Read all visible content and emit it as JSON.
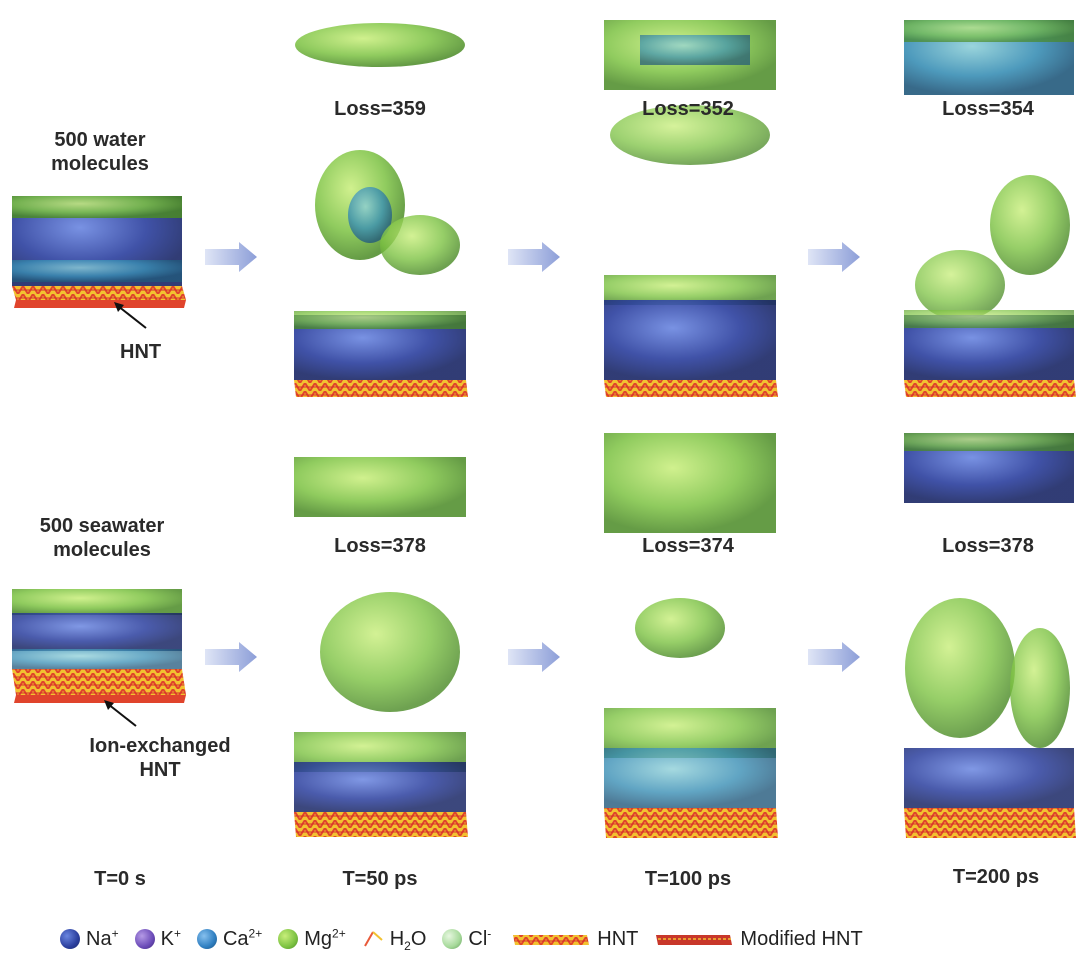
{
  "row1": {
    "initial_label": "500 water\nmolecules",
    "substrate_label": "HNT",
    "losses": [
      "Loss=359",
      "Loss=352",
      "Loss=354"
    ]
  },
  "row2": {
    "initial_label": "500 seawater\nmolecules",
    "substrate_label": "Ion-exchanged\nHNT",
    "losses": [
      "Loss=378",
      "Loss=374",
      "Loss=378"
    ]
  },
  "times": [
    "T=0 s",
    "T=50 ps",
    "T=100 ps",
    "T=200 ps"
  ],
  "legend": [
    {
      "base": "Na",
      "sup": "+",
      "sub": "",
      "color": "#2b3f9e"
    },
    {
      "base": "K",
      "sup": "+",
      "sub": "",
      "color": "#6b4bb8"
    },
    {
      "base": "Ca",
      "sup": "2+",
      "sub": "",
      "color": "#2f7fc1"
    },
    {
      "base": "Mg",
      "sup": "2+",
      "sub": "",
      "color": "#7cc242"
    },
    {
      "base": "H",
      "sup": "",
      "sub": "2",
      "tail": "O",
      "color": "#e85a3a"
    },
    {
      "base": "Cl",
      "sup": "-",
      "sub": "",
      "color": "#a6d99a"
    },
    {
      "base": "HNT",
      "sup": "",
      "sub": "",
      "color": "#e0442c"
    },
    {
      "base": "Modified HNT",
      "sup": "",
      "sub": "",
      "color": "#c8372a"
    }
  ],
  "colors": {
    "na": "#2b3f9e",
    "k": "#6b4bb8",
    "ca": "#2f7fc1",
    "mg": "#7cc242",
    "cl": "#a6d99a",
    "hnt_red": "#e0442c",
    "hnt_yellow": "#f2c230",
    "arrow": "#a9b6e0",
    "water": "#e85a3a"
  }
}
